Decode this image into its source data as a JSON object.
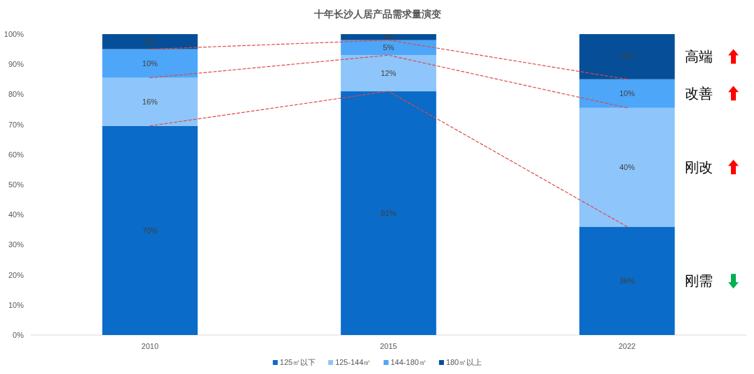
{
  "chart_data": {
    "type": "bar",
    "stacked": true,
    "title": "十年长沙人居产品需求量演变",
    "categories": [
      "2010",
      "2015",
      "2022"
    ],
    "series": [
      {
        "name": "125㎡以下",
        "color": "#0a6bc8",
        "values": [
          69.5,
          81,
          36
        ],
        "value_labels": [
          "70%",
          "81%",
          "36%"
        ]
      },
      {
        "name": "125-144㎡",
        "color": "#8ec5fa",
        "values": [
          16,
          12,
          39.5
        ],
        "value_labels": [
          "16%",
          "12%",
          "40%"
        ]
      },
      {
        "name": "144-180㎡",
        "color": "#4da6f8",
        "values": [
          9.5,
          5,
          9.5
        ],
        "value_labels": [
          "10%",
          "5%",
          "10%"
        ]
      },
      {
        "name": "180㎡以上",
        "color": "#064f98",
        "values": [
          5,
          2,
          15
        ],
        "value_labels": [
          "5%",
          "2%",
          "15%"
        ]
      },
      {
        "type": "line",
        "color": "#e04848",
        "line_style": "dashed",
        "values": [
          69.5,
          81,
          36
        ]
      },
      {
        "type": "line",
        "color": "#e04848",
        "line_style": "dashed",
        "values": [
          85.5,
          93,
          75.5
        ]
      },
      {
        "type": "line",
        "color": "#e04848",
        "line_style": "dashed",
        "values": [
          95,
          98,
          85
        ]
      }
    ],
    "ylim": [
      0,
      100
    ],
    "yticks": [
      {
        "value": 0,
        "label": "0%"
      },
      {
        "value": 10,
        "label": "10%"
      },
      {
        "value": 20,
        "label": "20%"
      },
      {
        "value": 30,
        "label": "30%"
      },
      {
        "value": 40,
        "label": "40%"
      },
      {
        "value": 50,
        "label": "50%"
      },
      {
        "value": 60,
        "label": "60%"
      },
      {
        "value": 70,
        "label": "70%"
      },
      {
        "value": 80,
        "label": "80%"
      },
      {
        "value": 90,
        "label": "90%"
      },
      {
        "value": 100,
        "label": "100%"
      }
    ],
    "grid": false,
    "legend": "bottom",
    "annotations": [
      "高端",
      "改善",
      "刚改",
      "刚需"
    ]
  }
}
